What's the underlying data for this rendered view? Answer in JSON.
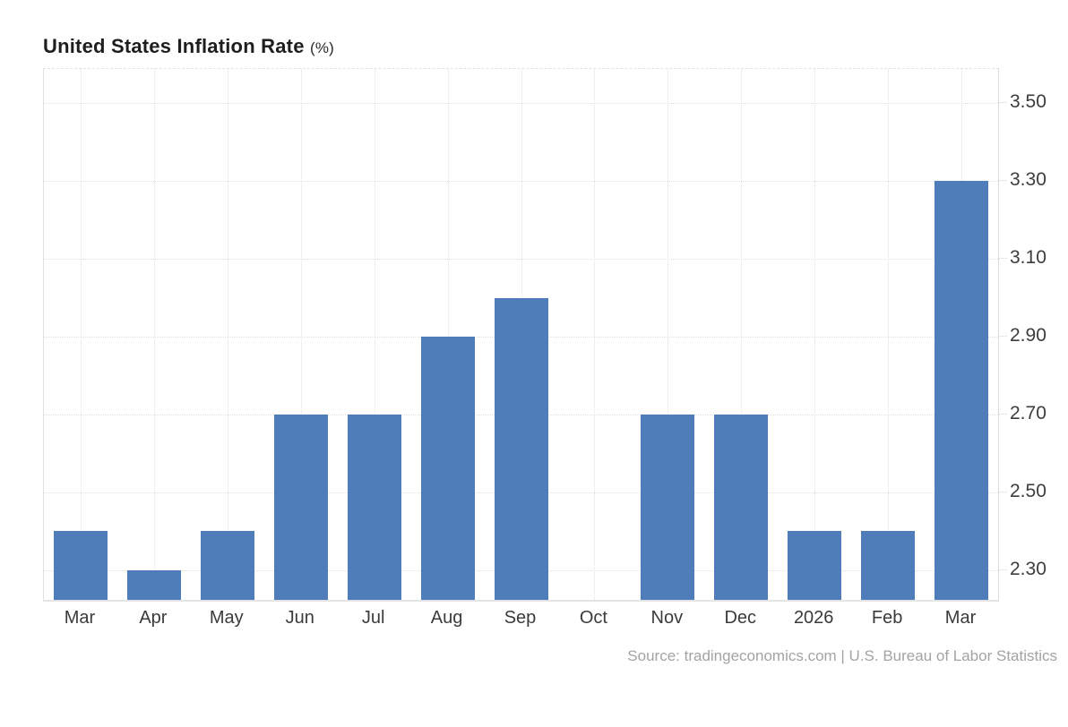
{
  "title": {
    "text": "United States Inflation Rate",
    "suffix": "(%)"
  },
  "source": "Source: tradingeconomics.com | U.S. Bureau of Labor Statistics",
  "colors": {
    "bar": "#4e7db9",
    "grid": "#dfdfdf",
    "axis_label": "#3d3d3d",
    "title": "#1e1e1e",
    "source": "#a3a3a3"
  },
  "chart_data": {
    "type": "bar",
    "title": "United States Inflation Rate (%)",
    "xlabel": "",
    "ylabel": "",
    "categories": [
      "Mar",
      "Apr",
      "May",
      "Jun",
      "Jul",
      "Aug",
      "Sep",
      "Oct",
      "Nov",
      "Dec",
      "2026",
      "Feb",
      "Mar"
    ],
    "values": [
      2.4,
      2.3,
      2.4,
      2.7,
      2.7,
      2.9,
      3.0,
      null,
      2.7,
      2.7,
      2.4,
      2.4,
      3.3
    ],
    "ylim": [
      2.224,
      3.588
    ],
    "yticks": [
      2.3,
      2.5,
      2.7,
      2.9,
      3.1,
      3.3,
      3.5
    ],
    "ytick_labels": [
      "2.30",
      "2.50",
      "2.70",
      "2.90",
      "3.10",
      "3.30",
      "3.50"
    ],
    "grid": true,
    "grid_style": "dotted",
    "legend": false,
    "missing_categories": [
      "Oct"
    ]
  }
}
